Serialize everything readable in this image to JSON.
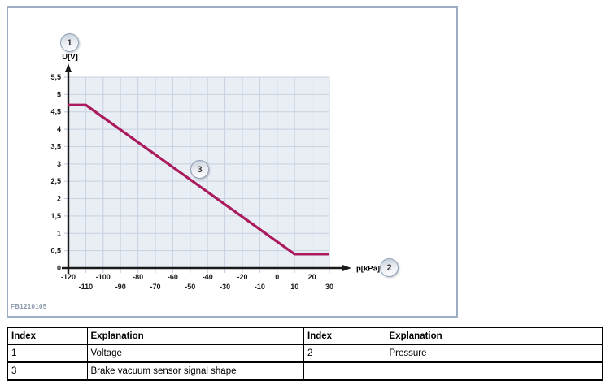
{
  "figure": {
    "code": "FB1210105",
    "callouts": [
      {
        "label": "1",
        "meaning": "Voltage"
      },
      {
        "label": "2",
        "meaning": "Pressure"
      },
      {
        "label": "3",
        "meaning": "Brake vacuum sensor signal shape"
      }
    ]
  },
  "chart_data": {
    "type": "line",
    "title": "",
    "xlabel": "p[kPa]",
    "ylabel": "U[V]",
    "xlim": [
      -120,
      30
    ],
    "ylim": [
      0,
      5.5
    ],
    "grid": true,
    "legend": "none",
    "x_ticks": [
      -120,
      -110,
      -100,
      -90,
      -80,
      -70,
      -60,
      -50,
      -40,
      -30,
      -20,
      -10,
      0,
      10,
      20,
      30
    ],
    "x_tick_labels": [
      "-120",
      "-110",
      "-100",
      "-90",
      "-80",
      "-70",
      "-60",
      "-50",
      "-40",
      "-30",
      "-20",
      "-10",
      "0",
      "10",
      "20",
      "30"
    ],
    "y_ticks": [
      0,
      0.5,
      1,
      1.5,
      2,
      2.5,
      3,
      3.5,
      4,
      4.5,
      5,
      5.5
    ],
    "y_tick_labels": [
      "0",
      "0,5",
      "1",
      "1,5",
      "2",
      "2,5",
      "3",
      "3,5",
      "4",
      "4,5",
      "5",
      "5,5"
    ],
    "series": [
      {
        "name": "Brake vacuum sensor signal shape",
        "color": "#AA1A5C",
        "points": [
          [
            -120,
            4.7
          ],
          [
            -110,
            4.7
          ],
          [
            10,
            0.4
          ],
          [
            30,
            0.4
          ]
        ]
      }
    ]
  },
  "colors": {
    "figure_border": "#9DADC4",
    "plot_bg": "#E9EDF4",
    "grid": "#C7D1E0",
    "axis": "#1A1A1A",
    "curve": "#AA1A5C",
    "figure_code": "#8B99AD",
    "badge_ring": "#8FA0B6"
  },
  "table": {
    "columns": [
      "Index",
      "Explanation",
      "Index",
      "Explanation"
    ],
    "rows": [
      [
        "1",
        "Voltage",
        "2",
        "Pressure"
      ],
      [
        "3",
        "Brake vacuum sensor signal shape",
        "",
        ""
      ]
    ]
  }
}
